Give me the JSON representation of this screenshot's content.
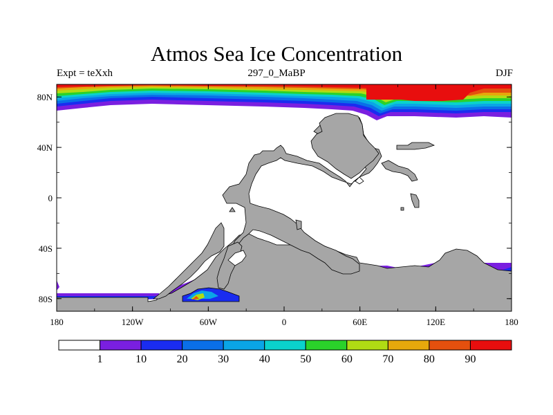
{
  "title": "Atmos Sea Ice Concentration",
  "subtitle_left": "Expt = teXxh",
  "subtitle_center": "297_0_MaBP",
  "subtitle_right": "DJF",
  "colors": {
    "land": "#a6a6a6",
    "ocean_no_ice": "#ffffff",
    "levels": [
      "#ffffff",
      "#7a1fe0",
      "#1a2cf0",
      "#0a6fe8",
      "#0aa5e6",
      "#0ad2cc",
      "#2ad22a",
      "#b0dc14",
      "#e6a80c",
      "#e4500e",
      "#e80e0e"
    ]
  },
  "map": {
    "lon_range": [
      -180,
      180
    ],
    "lat_range": [
      -90,
      90
    ],
    "lon_ticks": [
      "180",
      "120W",
      "60W",
      "0",
      "60E",
      "120E",
      "180"
    ],
    "lat_ticks": [
      "80N",
      "40N",
      "0",
      "40S",
      "80S"
    ]
  },
  "colorbar": {
    "labels": [
      "1",
      "10",
      "20",
      "30",
      "40",
      "50",
      "60",
      "70",
      "80",
      "90"
    ]
  }
}
